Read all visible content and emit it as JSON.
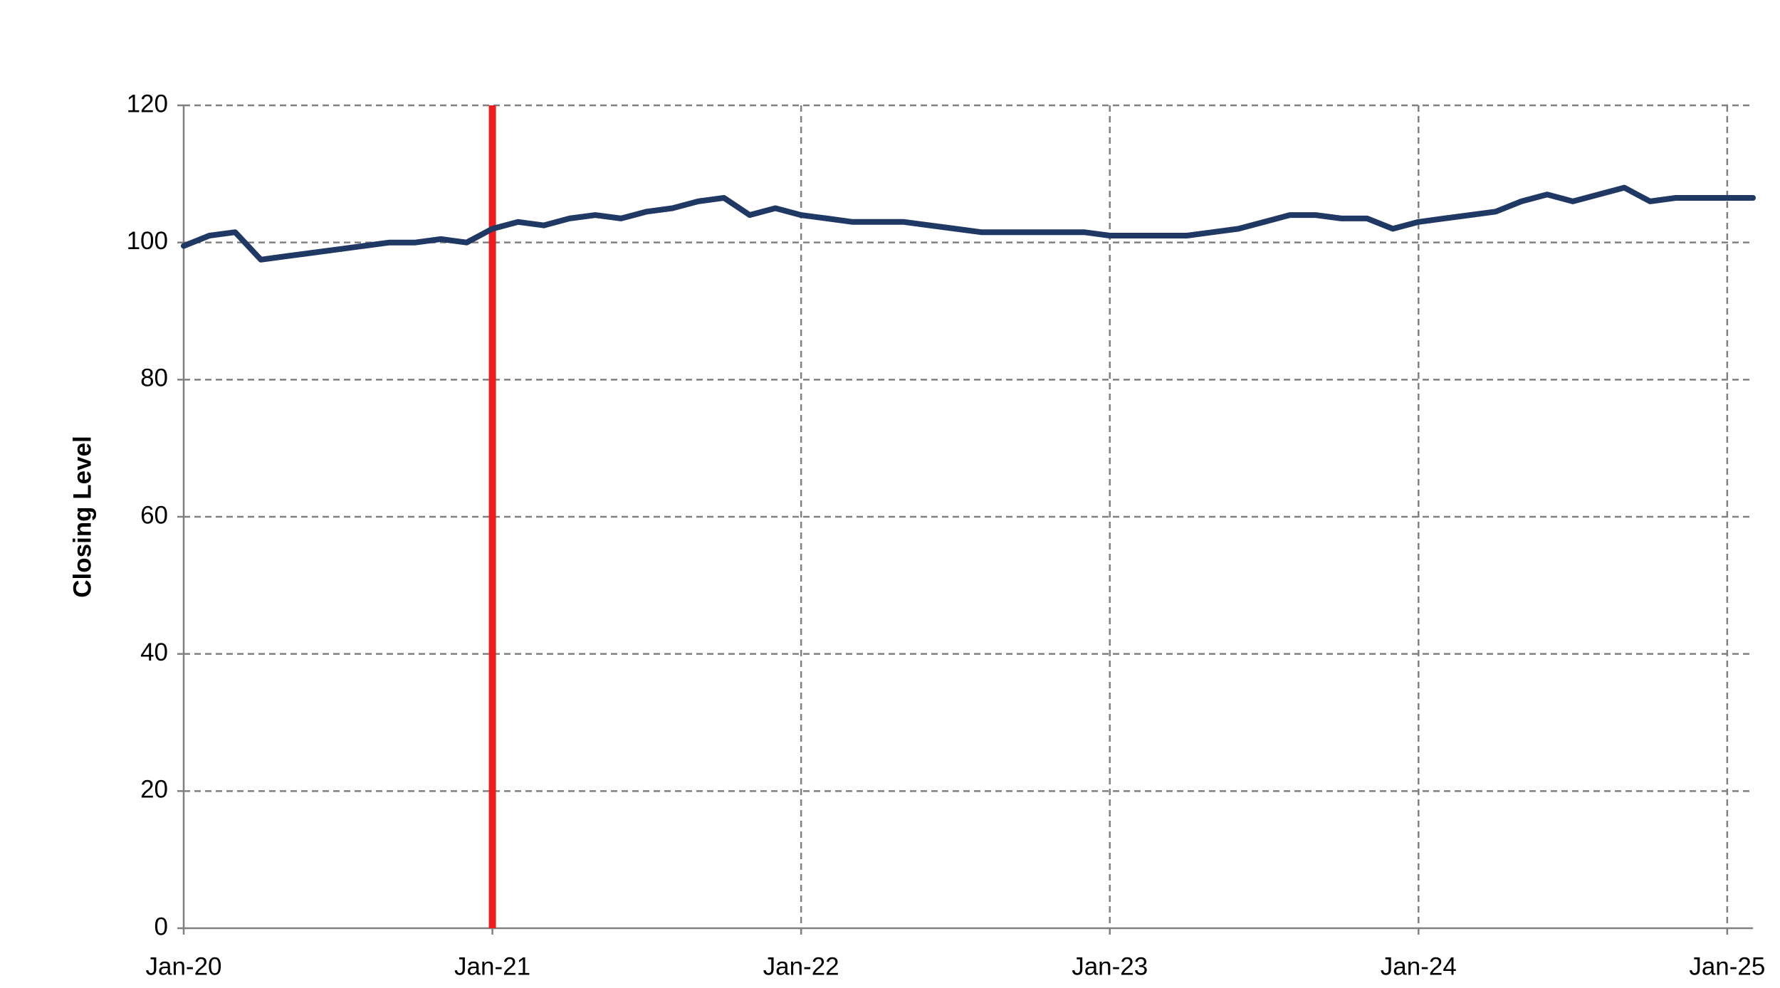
{
  "chart_data": {
    "type": "line",
    "y_label": "Closing Level",
    "x": [
      "2020-01",
      "2020-02",
      "2020-03",
      "2020-04",
      "2020-05",
      "2020-06",
      "2020-07",
      "2020-08",
      "2020-09",
      "2020-10",
      "2020-11",
      "2020-12",
      "2021-01",
      "2021-02",
      "2021-03",
      "2021-04",
      "2021-05",
      "2021-06",
      "2021-07",
      "2021-08",
      "2021-09",
      "2021-10",
      "2021-11",
      "2021-12",
      "2022-01",
      "2022-02",
      "2022-03",
      "2022-04",
      "2022-05",
      "2022-06",
      "2022-07",
      "2022-08",
      "2022-09",
      "2022-10",
      "2022-11",
      "2022-12",
      "2023-01",
      "2023-02",
      "2023-03",
      "2023-04",
      "2023-05",
      "2023-06",
      "2023-07",
      "2023-08",
      "2023-09",
      "2023-10",
      "2023-11",
      "2023-12",
      "2024-01",
      "2024-02",
      "2024-03",
      "2024-04",
      "2024-05",
      "2024-06",
      "2024-07",
      "2024-08",
      "2024-09",
      "2024-10",
      "2024-11",
      "2024-12",
      "2025-01",
      "2025-02"
    ],
    "values": [
      99.5,
      101,
      101.5,
      97.5,
      98,
      98.5,
      99,
      99.5,
      100,
      100,
      100.5,
      100,
      102,
      103,
      102.5,
      103.5,
      104,
      103.5,
      104.5,
      105,
      106,
      106.5,
      104,
      105,
      104,
      103.5,
      103,
      103,
      103,
      102.5,
      102,
      101.5,
      101.5,
      101.5,
      101.5,
      101.5,
      101,
      101,
      101,
      101,
      101.5,
      102,
      103,
      104,
      104,
      103.5,
      103.5,
      102,
      103,
      103.5,
      104,
      104.5,
      106,
      107,
      106,
      107,
      108,
      106,
      106.5,
      106.5,
      106.5,
      106.5
    ],
    "color": "#1f3864",
    "xlim": [
      "2020-01",
      "2025-02"
    ],
    "xticks": [
      {
        "value": "2020-01",
        "label": "Jan-20"
      },
      {
        "value": "2021-01",
        "label": "Jan-21"
      },
      {
        "value": "2022-01",
        "label": "Jan-22"
      },
      {
        "value": "2023-01",
        "label": "Jan-23"
      },
      {
        "value": "2024-01",
        "label": "Jan-24"
      },
      {
        "value": "2025-01",
        "label": "Jan-25"
      }
    ],
    "ylim": [
      0,
      120
    ],
    "yticks": [
      0,
      20,
      40,
      60,
      80,
      100,
      120
    ],
    "grid": true,
    "vline": {
      "x": "2021-01",
      "color": "#ee1c1c"
    }
  }
}
